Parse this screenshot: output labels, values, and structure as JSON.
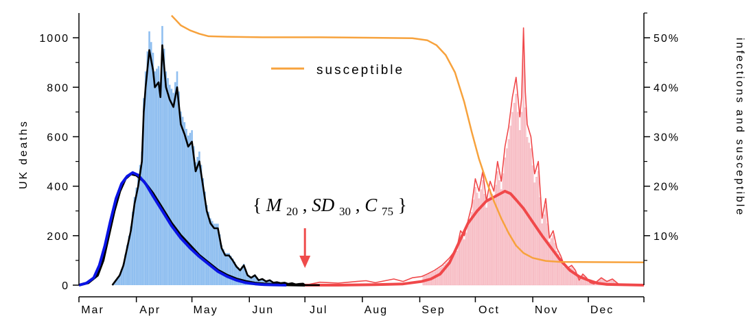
{
  "chart_data": {
    "type": "bar",
    "title": "",
    "xlabel": "",
    "ylabel": "UK deaths",
    "y2label": "infections and susceptible",
    "ylim": [
      0,
      1100
    ],
    "y2lim": [
      0,
      0.55
    ],
    "x_range_days": [
      0,
      305
    ],
    "x_ticks": [
      {
        "label": "Mar",
        "day": 0
      },
      {
        "label": "Apr",
        "day": 31
      },
      {
        "label": "May",
        "day": 61
      },
      {
        "label": "Jun",
        "day": 92
      },
      {
        "label": "Jul",
        "day": 122
      },
      {
        "label": "Aug",
        "day": 153
      },
      {
        "label": "Sep",
        "day": 184
      },
      {
        "label": "Oct",
        "day": 214
      },
      {
        "label": "Nov",
        "day": 245
      },
      {
        "label": "Dec",
        "day": 275
      }
    ],
    "y_ticks": [
      0,
      200,
      400,
      600,
      800,
      1000
    ],
    "y2_ticks": [
      {
        "label": "10%",
        "value": 0.1
      },
      {
        "label": "20%",
        "value": 0.2
      },
      {
        "label": "30%",
        "value": 0.3
      },
      {
        "label": "40%",
        "value": 0.4
      },
      {
        "label": "50%",
        "value": 0.5
      }
    ],
    "annotation": {
      "brace_open": "{",
      "brace_close": "}",
      "terms": [
        {
          "main": "M",
          "sub": "20"
        },
        {
          "main": "SD",
          "sub": "30"
        },
        {
          "main": "C",
          "sub": "75"
        }
      ],
      "sep": ","
    },
    "marker_day": 122,
    "colors": {
      "bars1": "#90bff0",
      "bars2": "#f9c9cf",
      "black": "#000000",
      "blue": "#0a14e6",
      "red": "#f0484a",
      "orange": "#f7a23c",
      "arrow": "#ef4b4b"
    },
    "legend": {
      "label": "susceptible",
      "position": "top-center"
    },
    "series": [
      {
        "name": "susceptible",
        "axis": "right",
        "points": [
          [
            50,
            0.545
          ],
          [
            55,
            0.525
          ],
          [
            60,
            0.515
          ],
          [
            65,
            0.508
          ],
          [
            70,
            0.503
          ],
          [
            80,
            0.502
          ],
          [
            100,
            0.501
          ],
          [
            130,
            0.501
          ],
          [
            160,
            0.5
          ],
          [
            180,
            0.499
          ],
          [
            188,
            0.495
          ],
          [
            193,
            0.485
          ],
          [
            198,
            0.465
          ],
          [
            203,
            0.43
          ],
          [
            208,
            0.37
          ],
          [
            212,
            0.31
          ],
          [
            216,
            0.255
          ],
          [
            220,
            0.21
          ],
          [
            224,
            0.17
          ],
          [
            228,
            0.135
          ],
          [
            232,
            0.105
          ],
          [
            236,
            0.08
          ],
          [
            240,
            0.065
          ],
          [
            245,
            0.055
          ],
          [
            252,
            0.049
          ],
          [
            260,
            0.047
          ],
          [
            305,
            0.046
          ]
        ]
      },
      {
        "name": "",
        "axis": "left",
        "points": [
          [
            0,
            0
          ],
          [
            5,
            10
          ],
          [
            10,
            40
          ],
          [
            13,
            100
          ],
          [
            16,
            200
          ],
          [
            19,
            300
          ],
          [
            22,
            380
          ],
          [
            25,
            430
          ],
          [
            28,
            450
          ],
          [
            31,
            445
          ],
          [
            35,
            420
          ],
          [
            40,
            370
          ],
          [
            45,
            310
          ],
          [
            50,
            250
          ],
          [
            55,
            200
          ],
          [
            60,
            160
          ],
          [
            65,
            120
          ],
          [
            70,
            90
          ],
          [
            75,
            60
          ],
          [
            80,
            40
          ],
          [
            85,
            25
          ],
          [
            90,
            15
          ],
          [
            95,
            8
          ],
          [
            100,
            5
          ],
          [
            105,
            3
          ],
          [
            110,
            2
          ],
          [
            115,
            1
          ],
          [
            122,
            0
          ]
        ]
      },
      {
        "name": "",
        "axis": "left",
        "points": [
          [
            0,
            0
          ],
          [
            4,
            8
          ],
          [
            8,
            30
          ],
          [
            11,
            80
          ],
          [
            14,
            160
          ],
          [
            17,
            260
          ],
          [
            20,
            350
          ],
          [
            23,
            410
          ],
          [
            26,
            440
          ],
          [
            29,
            455
          ],
          [
            32,
            445
          ],
          [
            36,
            410
          ],
          [
            40,
            360
          ],
          [
            45,
            300
          ],
          [
            50,
            240
          ],
          [
            55,
            190
          ],
          [
            60,
            150
          ],
          [
            65,
            115
          ],
          [
            70,
            85
          ],
          [
            75,
            55
          ],
          [
            80,
            35
          ],
          [
            85,
            20
          ],
          [
            90,
            10
          ],
          [
            95,
            5
          ],
          [
            100,
            2
          ],
          [
            105,
            1
          ],
          [
            112,
            0
          ]
        ]
      },
      {
        "name": "",
        "axis": "left",
        "points": [
          [
            18,
            0
          ],
          [
            20,
            20
          ],
          [
            22,
            40
          ],
          [
            24,
            80
          ],
          [
            26,
            150
          ],
          [
            28,
            220
          ],
          [
            30,
            330
          ],
          [
            32,
            400
          ],
          [
            34,
            500
          ],
          [
            35,
            700
          ],
          [
            36,
            800
          ],
          [
            38,
            950
          ],
          [
            40,
            870
          ],
          [
            41,
            800
          ],
          [
            43,
            820
          ],
          [
            44,
            760
          ],
          [
            45,
            970
          ],
          [
            47,
            800
          ],
          [
            49,
            750
          ],
          [
            51,
            720
          ],
          [
            53,
            800
          ],
          [
            55,
            650
          ],
          [
            57,
            610
          ],
          [
            59,
            560
          ],
          [
            61,
            580
          ],
          [
            63,
            460
          ],
          [
            65,
            500
          ],
          [
            67,
            400
          ],
          [
            69,
            300
          ],
          [
            71,
            250
          ],
          [
            73,
            230
          ],
          [
            75,
            230
          ],
          [
            77,
            150
          ],
          [
            79,
            120
          ],
          [
            81,
            120
          ],
          [
            83,
            100
          ],
          [
            85,
            75
          ],
          [
            87,
            60
          ],
          [
            89,
            80
          ],
          [
            91,
            40
          ],
          [
            93,
            30
          ],
          [
            95,
            40
          ],
          [
            97,
            20
          ],
          [
            99,
            25
          ],
          [
            101,
            15
          ],
          [
            103,
            20
          ],
          [
            105,
            10
          ],
          [
            107,
            12
          ],
          [
            109,
            8
          ],
          [
            111,
            10
          ],
          [
            113,
            5
          ],
          [
            115,
            8
          ],
          [
            117,
            3
          ],
          [
            119,
            5
          ],
          [
            121,
            6
          ],
          [
            122,
            0
          ],
          [
            130,
            0
          ]
        ]
      },
      {
        "name": "",
        "axis": "left",
        "points": [
          [
            122,
            0
          ],
          [
            140,
            0
          ],
          [
            160,
            2
          ],
          [
            175,
            5
          ],
          [
            185,
            15
          ],
          [
            190,
            25
          ],
          [
            195,
            45
          ],
          [
            200,
            90
          ],
          [
            205,
            170
          ],
          [
            210,
            250
          ],
          [
            215,
            300
          ],
          [
            220,
            340
          ],
          [
            225,
            360
          ],
          [
            230,
            380
          ],
          [
            233,
            370
          ],
          [
            236,
            345
          ],
          [
            240,
            310
          ],
          [
            245,
            255
          ],
          [
            250,
            200
          ],
          [
            255,
            150
          ],
          [
            260,
            100
          ],
          [
            265,
            60
          ],
          [
            270,
            35
          ],
          [
            275,
            20
          ],
          [
            280,
            8
          ],
          [
            285,
            3
          ],
          [
            305,
            0
          ]
        ]
      },
      {
        "name": "",
        "axis": "left",
        "points": [
          [
            122,
            0
          ],
          [
            130,
            12
          ],
          [
            140,
            8
          ],
          [
            150,
            15
          ],
          [
            155,
            18
          ],
          [
            160,
            10
          ],
          [
            170,
            25
          ],
          [
            175,
            15
          ],
          [
            180,
            30
          ],
          [
            185,
            35
          ],
          [
            188,
            45
          ],
          [
            192,
            60
          ],
          [
            196,
            80
          ],
          [
            200,
            110
          ],
          [
            204,
            150
          ],
          [
            206,
            220
          ],
          [
            208,
            200
          ],
          [
            210,
            260
          ],
          [
            212,
            320
          ],
          [
            214,
            430
          ],
          [
            216,
            380
          ],
          [
            218,
            460
          ],
          [
            220,
            340
          ],
          [
            222,
            420
          ],
          [
            224,
            380
          ],
          [
            226,
            500
          ],
          [
            228,
            420
          ],
          [
            230,
            560
          ],
          [
            232,
            640
          ],
          [
            234,
            760
          ],
          [
            236,
            840
          ],
          [
            238,
            680
          ],
          [
            239,
            760
          ],
          [
            240,
            1040
          ],
          [
            241,
            780
          ],
          [
            242,
            650
          ],
          [
            244,
            600
          ],
          [
            246,
            450
          ],
          [
            248,
            500
          ],
          [
            250,
            270
          ],
          [
            252,
            350
          ],
          [
            254,
            190
          ],
          [
            256,
            220
          ],
          [
            258,
            150
          ],
          [
            260,
            120
          ],
          [
            262,
            80
          ],
          [
            264,
            70
          ],
          [
            266,
            80
          ],
          [
            268,
            60
          ],
          [
            270,
            20
          ],
          [
            272,
            45
          ],
          [
            274,
            30
          ],
          [
            276,
            10
          ],
          [
            278,
            5
          ],
          [
            282,
            30
          ],
          [
            285,
            15
          ],
          [
            288,
            25
          ],
          [
            292,
            0
          ],
          [
            305,
            0
          ]
        ]
      }
    ]
  }
}
